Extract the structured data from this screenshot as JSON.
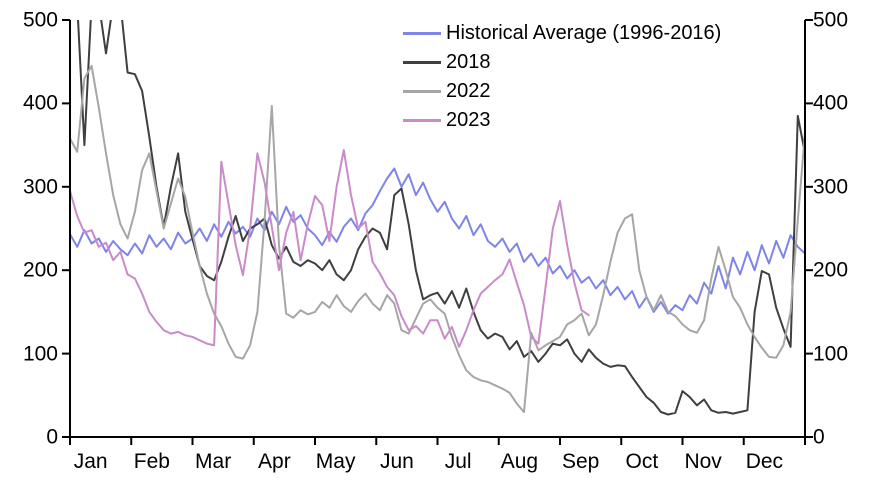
{
  "chart_data": {
    "type": "line",
    "title": "",
    "xlabel": "",
    "ylabel": "",
    "ylim": [
      0,
      500
    ],
    "y_ticks": [
      0,
      100,
      200,
      300,
      400,
      500
    ],
    "x_tick_labels": [
      "Jan",
      "Feb",
      "Mar",
      "Apr",
      "May",
      "Jun",
      "Jul",
      "Aug",
      "Sep",
      "Oct",
      "Nov",
      "Dec"
    ],
    "grid": "off",
    "legend_position": "top-right-inside",
    "axis_color": "#000000",
    "points_per_year": 103,
    "series": [
      {
        "name": "Historical Average (1996-2016)",
        "color": "#7E84E8",
        "values": [
          243,
          228,
          248,
          232,
          238,
          222,
          235,
          225,
          218,
          232,
          220,
          242,
          228,
          238,
          225,
          245,
          232,
          238,
          250,
          235,
          255,
          240,
          258,
          244,
          252,
          240,
          262,
          248,
          270,
          255,
          276,
          258,
          266,
          250,
          242,
          230,
          246,
          234,
          252,
          262,
          248,
          268,
          278,
          295,
          310,
          322,
          300,
          315,
          290,
          305,
          285,
          270,
          282,
          262,
          250,
          265,
          242,
          255,
          235,
          228,
          238,
          222,
          232,
          210,
          220,
          205,
          215,
          196,
          205,
          190,
          200,
          185,
          192,
          178,
          188,
          170,
          180,
          165,
          175,
          155,
          168,
          150,
          162,
          148,
          158,
          152,
          170,
          160,
          185,
          172,
          205,
          178,
          215,
          195,
          222,
          200,
          230,
          208,
          235,
          215,
          242,
          228,
          220
        ]
      },
      {
        "name": "2018",
        "color": "#3F3F3F",
        "values": [
          520,
          520,
          350,
          520,
          520,
          460,
          520,
          520,
          437,
          435,
          415,
          360,
          300,
          252,
          300,
          340,
          270,
          237,
          205,
          193,
          188,
          210,
          240,
          265,
          235,
          250,
          255,
          262,
          230,
          214,
          228,
          210,
          205,
          212,
          208,
          200,
          212,
          195,
          188,
          200,
          225,
          240,
          250,
          245,
          225,
          290,
          298,
          255,
          200,
          165,
          170,
          173,
          160,
          175,
          155,
          178,
          150,
          128,
          118,
          124,
          120,
          105,
          115,
          96,
          103,
          90,
          100,
          112,
          110,
          117,
          100,
          90,
          105,
          95,
          88,
          84,
          86,
          85,
          72,
          60,
          48,
          41,
          30,
          27,
          29,
          55,
          48,
          38,
          45,
          32,
          29,
          30,
          28,
          30,
          32,
          150,
          199,
          195,
          155,
          130,
          108,
          385,
          340
        ]
      },
      {
        "name": "2022",
        "color": "#A6A6A6",
        "values": [
          358,
          342,
          430,
          445,
          395,
          340,
          290,
          255,
          238,
          270,
          320,
          340,
          295,
          250,
          280,
          310,
          288,
          245,
          205,
          172,
          148,
          133,
          112,
          96,
          94,
          110,
          150,
          260,
          397,
          230,
          148,
          143,
          152,
          147,
          150,
          162,
          155,
          170,
          157,
          150,
          163,
          172,
          160,
          152,
          170,
          160,
          128,
          124,
          142,
          160,
          165,
          155,
          148,
          120,
          98,
          80,
          72,
          68,
          66,
          62,
          58,
          53,
          40,
          30,
          125,
          104,
          110,
          115,
          120,
          135,
          140,
          148,
          122,
          135,
          170,
          210,
          245,
          262,
          267,
          200,
          168,
          152,
          170,
          150,
          145,
          135,
          128,
          125,
          140,
          190,
          228,
          200,
          168,
          155,
          135,
          120,
          107,
          96,
          95,
          110,
          150,
          260,
          365
        ]
      },
      {
        "name": "2023",
        "color": "#C98BC9",
        "values": [
          295,
          265,
          245,
          248,
          228,
          233,
          212,
          222,
          195,
          190,
          172,
          150,
          138,
          128,
          124,
          126,
          122,
          120,
          116,
          112,
          110,
          330,
          280,
          230,
          194,
          250,
          340,
          305,
          252,
          200,
          245,
          270,
          212,
          255,
          289,
          278,
          235,
          300,
          344,
          290,
          250,
          258,
          210,
          196,
          180,
          170,
          145,
          128,
          133,
          124,
          140,
          140,
          118,
          132,
          108,
          128,
          152,
          172,
          180,
          188,
          195,
          213,
          185,
          158,
          120,
          112,
          180,
          250,
          283,
          230,
          185,
          152,
          146
        ]
      }
    ]
  }
}
